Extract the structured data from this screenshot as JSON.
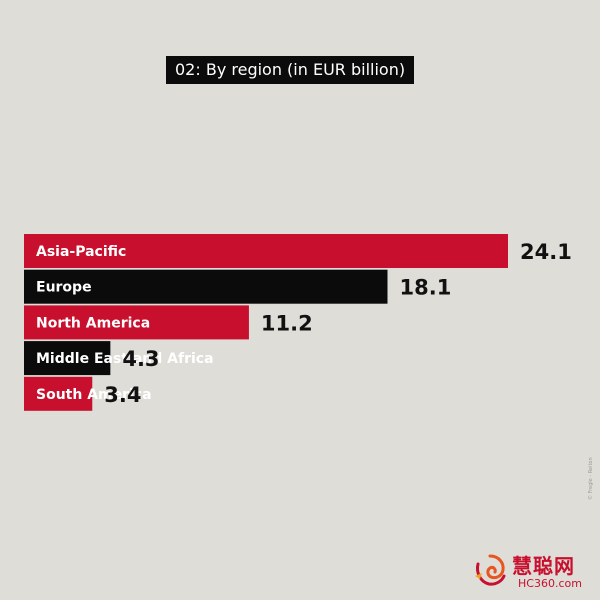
{
  "chart_data": {
    "type": "bar",
    "orientation": "horizontal",
    "title": "02: By region (in EUR billion)",
    "categories": [
      "Asia-Pacific",
      "Europe",
      "North America",
      "Middle East and Africa",
      "South America"
    ],
    "values": [
      24.1,
      18.1,
      11.2,
      4.3,
      3.4
    ],
    "value_labels": [
      "24.1",
      "18.1",
      "11.2",
      "4.3",
      "3.4"
    ],
    "xlim": [
      0,
      24.1
    ],
    "grid": false,
    "legend": "none",
    "colors": {
      "alternate": [
        "#c8102e",
        "#0b0b0b"
      ],
      "bar_text": "#ffffff",
      "value_text": "#111111",
      "background": "#deddd8"
    }
  },
  "credit": "© Fregle - Reiton",
  "watermark": {
    "brand_cn": "慧聪网",
    "url": "HC360.com"
  }
}
